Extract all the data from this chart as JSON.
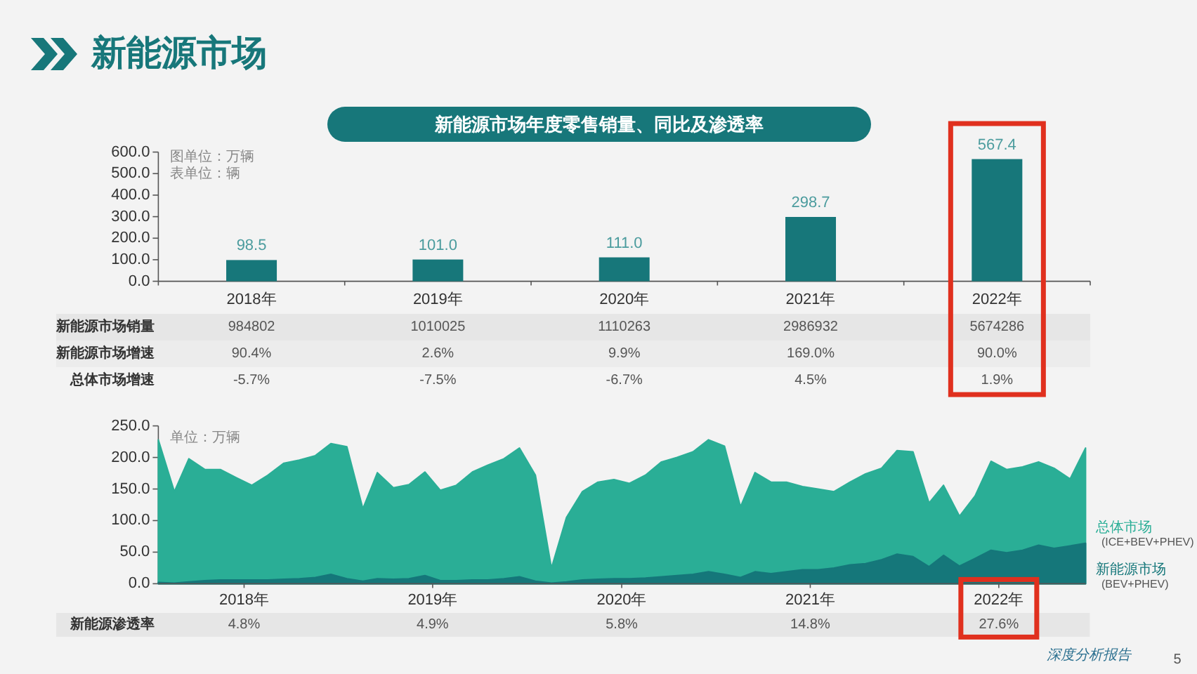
{
  "chart_data": [
    {
      "type": "bar",
      "title": "新能源市场年度零售销量、同比及渗透率",
      "categories": [
        "2018年",
        "2019年",
        "2020年",
        "2021年",
        "2022年"
      ],
      "values": [
        98.5,
        101.0,
        111.0,
        298.7,
        567.4
      ],
      "value_labels": [
        "98.5",
        "101.0",
        "111.0",
        "298.7",
        "567.4"
      ],
      "color": "#17777a",
      "ylim": [
        0,
        600
      ],
      "yticks": [
        {
          "value": 0,
          "label": "0.0"
        },
        {
          "value": 100,
          "label": "100.0"
        },
        {
          "value": 200,
          "label": "200.0"
        },
        {
          "value": 300,
          "label": "300.0"
        },
        {
          "value": 400,
          "label": "400.0"
        },
        {
          "value": 500,
          "label": "500.0"
        },
        {
          "value": 600,
          "label": "600.0"
        }
      ],
      "annotations": [
        "新能源市场",
        "图单位：万辆",
        "表单位：辆",
        "新能源市场销量",
        "984802",
        "1010025",
        "1110263",
        "2986932",
        "5674286",
        "新能源市场增速",
        "90.4%",
        "2.6%",
        "9.9%",
        "169.0%",
        "90.0%",
        "总体市场增速",
        "-5.7%",
        "-7.5%",
        "-6.7%",
        "4.5%",
        "1.9%"
      ]
    },
    {
      "type": "area",
      "x": [
        "2018-01",
        "2018-02",
        "2018-03",
        "2018-04",
        "2018-05",
        "2018-06",
        "2018-07",
        "2018-08",
        "2018-09",
        "2018-10",
        "2018-11",
        "2018-12",
        "2019-01",
        "2019-02",
        "2019-03",
        "2019-04",
        "2019-05",
        "2019-06",
        "2019-07",
        "2019-08",
        "2019-09",
        "2019-10",
        "2019-11",
        "2019-12",
        "2020-01",
        "2020-02",
        "2020-03",
        "2020-04",
        "2020-05",
        "2020-06",
        "2020-07",
        "2020-08",
        "2020-09",
        "2020-10",
        "2020-11",
        "2020-12",
        "2021-01",
        "2021-02",
        "2021-03",
        "2021-04",
        "2021-05",
        "2021-06",
        "2021-07",
        "2021-08",
        "2021-09",
        "2021-10",
        "2021-11",
        "2021-12",
        "2022-01",
        "2022-02",
        "2022-03",
        "2022-04",
        "2022-05",
        "2022-06",
        "2022-07",
        "2022-08",
        "2022-09",
        "2022-10",
        "2022-11",
        "2022-12"
      ],
      "series": [
        {
          "name": "总体市场 (ICE+BEV+PHEV)",
          "color": "#2aae96",
          "values": [
            228,
            146,
            198,
            181,
            181,
            168,
            156,
            172,
            191,
            196,
            203,
            222,
            217,
            119,
            176,
            152,
            157,
            177,
            148,
            156,
            177,
            188,
            198,
            215,
            172,
            25,
            105,
            146,
            161,
            165,
            159,
            172,
            193,
            200,
            209,
            228,
            218,
            122,
            176,
            161,
            161,
            154,
            150,
            146,
            161,
            174,
            183,
            211,
            209,
            128,
            156,
            107,
            139,
            194,
            181,
            185,
            193,
            183,
            166,
            215
          ]
        },
        {
          "name": "新能源市场 (BEV+PHEV)",
          "color": "#15777a",
          "values": [
            2,
            1,
            3,
            5,
            6,
            6,
            6,
            6,
            7,
            8,
            10,
            15,
            8,
            4,
            8,
            7,
            8,
            13,
            5,
            5,
            6,
            6,
            8,
            11,
            4,
            1,
            3,
            6,
            7,
            8,
            8,
            9,
            11,
            13,
            15,
            19,
            15,
            10,
            19,
            16,
            19,
            22,
            22,
            25,
            30,
            32,
            38,
            47,
            43,
            27,
            45,
            28,
            40,
            53,
            49,
            53,
            61,
            56,
            60,
            64
          ]
        }
      ],
      "xlim": [
        "2018-01",
        "2022-12"
      ],
      "xticks": [
        {
          "value": "2018-06-16",
          "label": "2018年"
        },
        {
          "value": "2019-06-16",
          "label": "2019年"
        },
        {
          "value": "2020-06-16",
          "label": "2020年"
        },
        {
          "value": "2021-06-16",
          "label": "2021年"
        },
        {
          "value": "2022-06-16",
          "label": "2022年"
        }
      ],
      "ylim": [
        0,
        250
      ],
      "yticks": [
        {
          "value": 0,
          "label": "0.0"
        },
        {
          "value": 50,
          "label": "50.0"
        },
        {
          "value": 100,
          "label": "100.0"
        },
        {
          "value": 150,
          "label": "150.0"
        },
        {
          "value": 200,
          "label": "200.0"
        },
        {
          "value": 250,
          "label": "250.0"
        }
      ],
      "annotations": [
        "单位：万辆",
        "新能源渗透率",
        "4.8%",
        "4.9%",
        "5.8%",
        "14.8%",
        "27.6%",
        "深度分析报告",
        "5"
      ]
    }
  ]
}
